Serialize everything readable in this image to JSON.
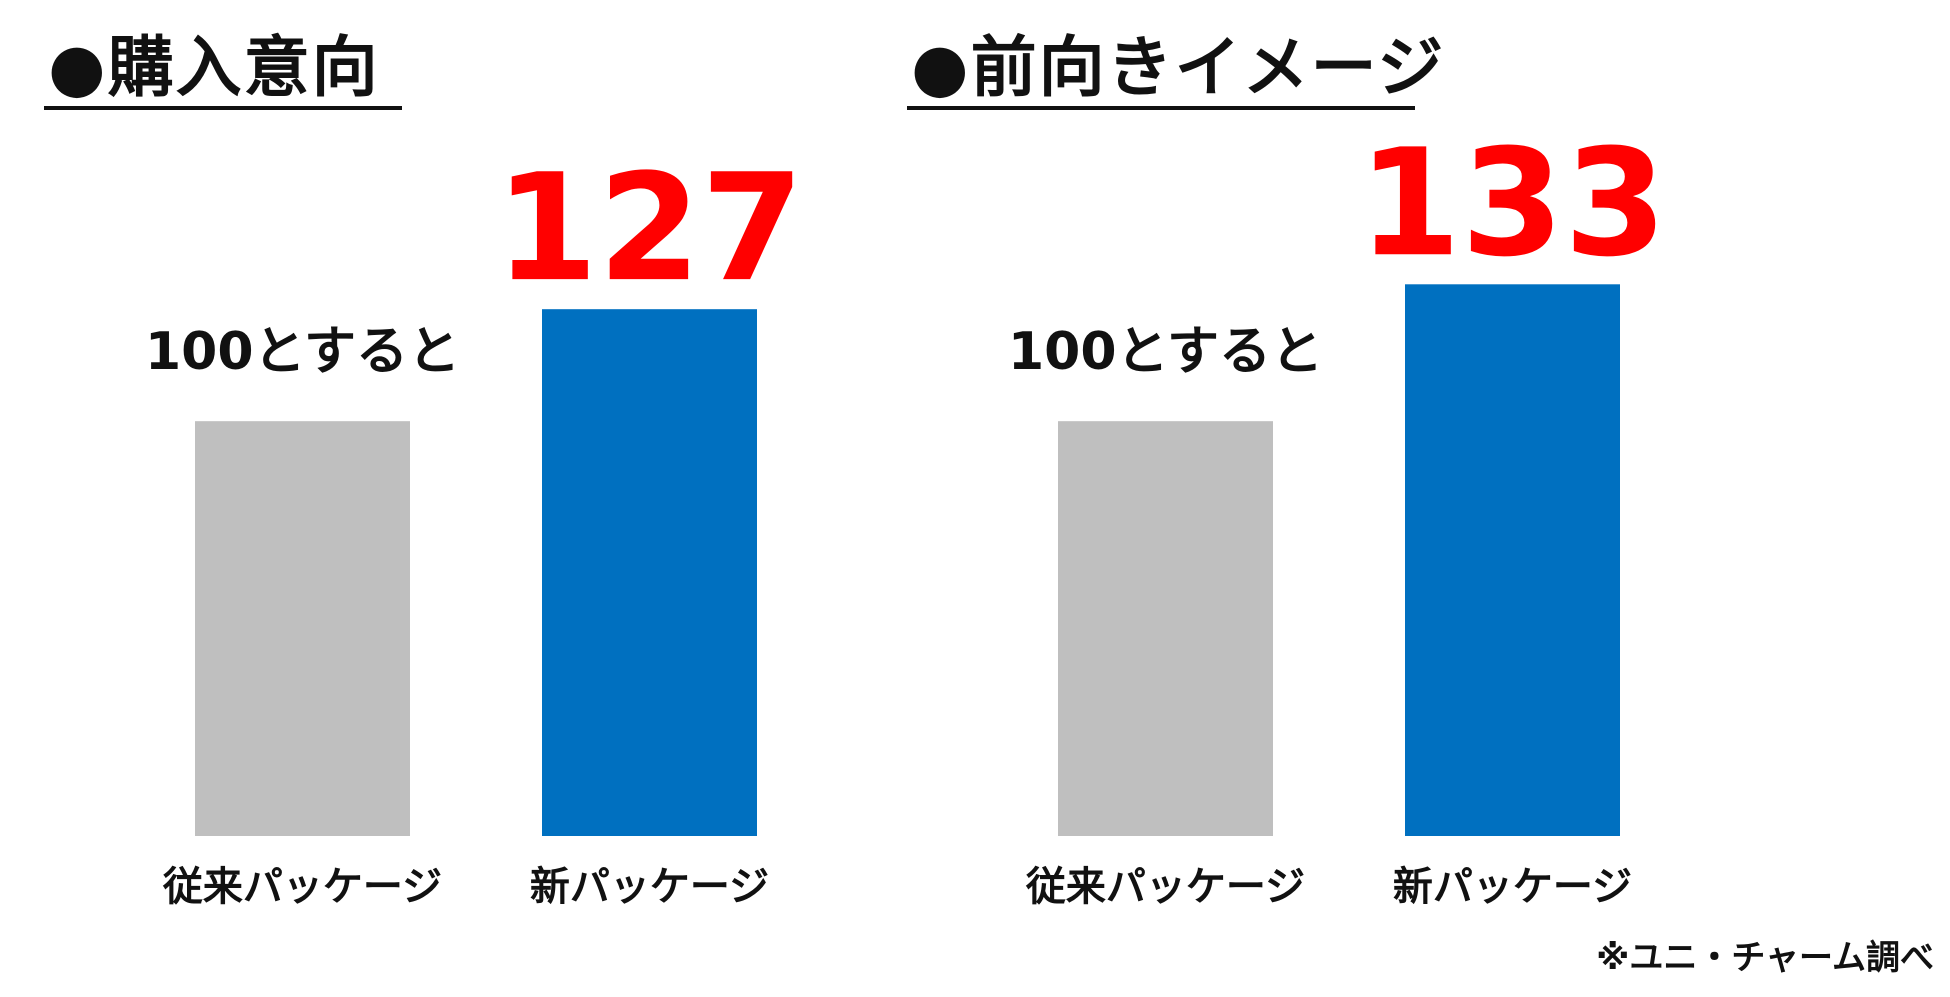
{
  "chart_data": [
    {
      "type": "bar",
      "title": "●購入意向",
      "categories": [
        "従来パッケージ",
        "新パッケージ"
      ],
      "values": [
        100,
        127
      ],
      "data_labels": [
        "100とすると",
        "127"
      ],
      "ylim": [
        0,
        135
      ],
      "grid": false,
      "legend": "none",
      "colors": [
        "#bfbfbf",
        "#0070c0"
      ],
      "label_colors": [
        "#111111",
        "#ff0000"
      ]
    },
    {
      "type": "bar",
      "title": "●前向きイメージ",
      "categories": [
        "従来パッケージ",
        "新パッケージ"
      ],
      "values": [
        100,
        133
      ],
      "data_labels": [
        "100とすると",
        "133"
      ],
      "ylim": [
        0,
        135
      ],
      "grid": false,
      "legend": "none",
      "colors": [
        "#bfbfbf",
        "#0070c0"
      ],
      "label_colors": [
        "#111111",
        "#ff0000"
      ]
    }
  ],
  "footnote": "※ユニ・チャーム調べ"
}
